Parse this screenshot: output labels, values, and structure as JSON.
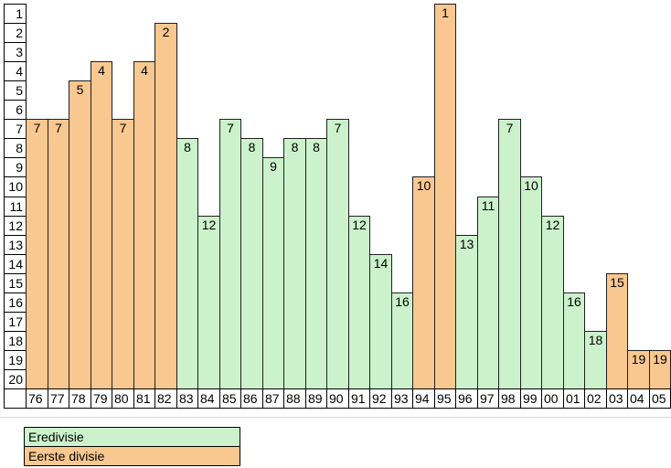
{
  "chart_data": {
    "type": "bar",
    "title": "",
    "xlabel": "",
    "ylabel": "",
    "categories": [
      "76",
      "77",
      "78",
      "79",
      "80",
      "81",
      "82",
      "83",
      "84",
      "85",
      "86",
      "87",
      "88",
      "89",
      "90",
      "91",
      "92",
      "93",
      "94",
      "95",
      "96",
      "97",
      "98",
      "99",
      "00",
      "01",
      "02",
      "03",
      "04",
      "05"
    ],
    "values": [
      7,
      7,
      5,
      4,
      7,
      4,
      2,
      8,
      12,
      7,
      8,
      9,
      8,
      8,
      7,
      12,
      14,
      16,
      10,
      1,
      13,
      11,
      7,
      10,
      12,
      16,
      18,
      15,
      19,
      19
    ],
    "divisions": [
      "Eerste divisie",
      "Eerste divisie",
      "Eerste divisie",
      "Eerste divisie",
      "Eerste divisie",
      "Eerste divisie",
      "Eerste divisie",
      "Eredivisie",
      "Eredivisie",
      "Eredivisie",
      "Eredivisie",
      "Eredivisie",
      "Eredivisie",
      "Eredivisie",
      "Eredivisie",
      "Eredivisie",
      "Eredivisie",
      "Eredivisie",
      "Eerste divisie",
      "Eerste divisie",
      "Eredivisie",
      "Eredivisie",
      "Eredivisie",
      "Eredivisie",
      "Eredivisie",
      "Eredivisie",
      "Eredivisie",
      "Eerste divisie",
      "Eerste divisie",
      "Eerste divisie"
    ],
    "y_ticks": [
      "1",
      "2",
      "3",
      "4",
      "5",
      "6",
      "7",
      "8",
      "9",
      "10",
      "11",
      "12",
      "13",
      "14",
      "15",
      "16",
      "17",
      "18",
      "19",
      "20"
    ],
    "ylim": [
      1,
      20
    ],
    "y_axis_inverted": true,
    "grid": false,
    "bar_labels_visible": true,
    "colors": {
      "Eredivisie": "#ccf2cc",
      "Eerste divisie": "#f9c890",
      "bar_border": "#1f1f1f",
      "axis_border": "#000000",
      "background": "#ffffff"
    },
    "legend": {
      "position": "bottom-left",
      "entries": [
        {
          "label": "Eredivisie",
          "color": "#ccf2cc"
        },
        {
          "label": "Eerste divisie",
          "color": "#f9c890"
        }
      ]
    }
  }
}
